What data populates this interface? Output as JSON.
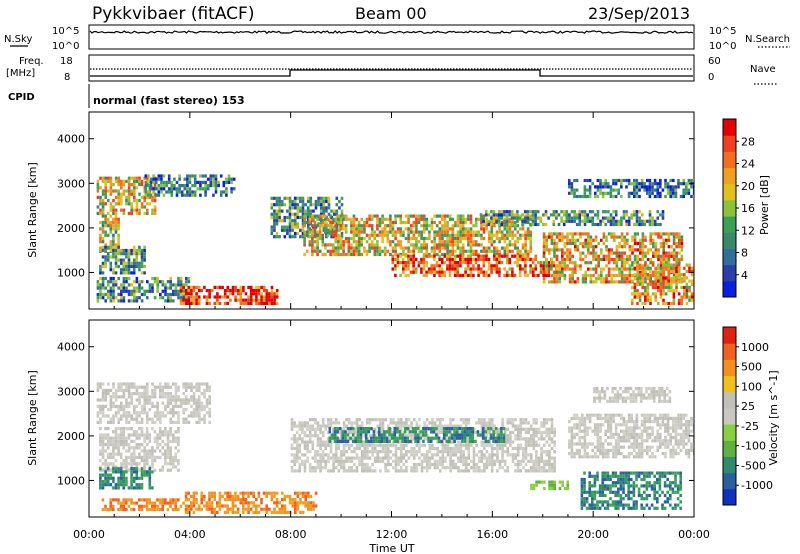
{
  "header": {
    "station": "Pykkvibaer (fitACF)",
    "beam": "Beam 00",
    "date": "23/Sep/2013"
  },
  "noise_panel": {
    "left_label": "N.Sky",
    "right_label": "N.Search",
    "left_ticks": [
      "10^5",
      "10^0"
    ],
    "right_ticks": [
      "10^5",
      "10^0"
    ]
  },
  "freq_panel": {
    "left_label_1": "Freq.",
    "left_label_2": "[MHz]",
    "cpid_label": "CPID",
    "right_label": "Nave",
    "left_ticks": [
      "18",
      "8"
    ],
    "right_ticks": [
      "60",
      "0"
    ],
    "cpid_text": "normal (fast stereo) 153"
  },
  "chart_data": [
    {
      "type": "heatmap",
      "name": "power",
      "ylabel": "Slant Range [km]",
      "xlabel": "Time UT",
      "x_ticks": [
        "00:00",
        "04:00",
        "08:00",
        "12:00",
        "16:00",
        "20:00",
        "00:00"
      ],
      "x_range_hours": [
        0,
        24
      ],
      "y_ticks": [
        1000,
        2000,
        3000,
        4000
      ],
      "ylim": [
        180,
        4600
      ],
      "colorbar": {
        "label": "Power [dB]",
        "ticks": [
          "28",
          "24",
          "20",
          "16",
          "12",
          "8",
          "4"
        ],
        "colors": [
          "#0a1fe0",
          "#2a3fa8",
          "#2f6f9a",
          "#3a8a6a",
          "#3aa055",
          "#8ac23a",
          "#e0c020",
          "#f0a020",
          "#f07020",
          "#f04020",
          "#e00000"
        ]
      },
      "bands": [
        {
          "t": [
            0.3,
            2.6
          ],
          "r": [
            2300,
            3150
          ],
          "level": 0.6
        },
        {
          "t": [
            0.4,
            1.2
          ],
          "r": [
            1500,
            2300
          ],
          "level": 0.55
        },
        {
          "t": [
            0.4,
            2.2
          ],
          "r": [
            1000,
            1600
          ],
          "level": 0.35
        },
        {
          "t": [
            0.3,
            4.0
          ],
          "r": [
            350,
            900
          ],
          "level": 0.3
        },
        {
          "t": [
            2.2,
            5.8
          ],
          "r": [
            2700,
            3200
          ],
          "level": 0.25
        },
        {
          "t": [
            3.6,
            7.5
          ],
          "r": [
            300,
            700
          ],
          "level": 0.9
        },
        {
          "t": [
            7.2,
            10.0
          ],
          "r": [
            1800,
            2700
          ],
          "level": 0.35
        },
        {
          "t": [
            8.5,
            17.5
          ],
          "r": [
            1400,
            2300
          ],
          "level": 0.6
        },
        {
          "t": [
            12.0,
            18.5
          ],
          "r": [
            900,
            1400
          ],
          "level": 0.8
        },
        {
          "t": [
            15.5,
            22.8
          ],
          "r": [
            2100,
            2400
          ],
          "level": 0.35
        },
        {
          "t": [
            18.0,
            23.5
          ],
          "r": [
            800,
            1900
          ],
          "level": 0.65
        },
        {
          "t": [
            19.0,
            24.0
          ],
          "r": [
            2700,
            3100
          ],
          "level": 0.25
        },
        {
          "t": [
            21.5,
            24.0
          ],
          "r": [
            300,
            1200
          ],
          "level": 0.7
        }
      ]
    },
    {
      "type": "heatmap",
      "name": "velocity",
      "ylabel": "Slant Range [km]",
      "xlabel": "Time UT",
      "x_ticks": [
        "00:00",
        "04:00",
        "08:00",
        "12:00",
        "16:00",
        "20:00",
        "00:00"
      ],
      "x_range_hours": [
        0,
        24
      ],
      "y_ticks": [
        1000,
        2000,
        3000,
        4000
      ],
      "ylim": [
        180,
        4600
      ],
      "colorbar": {
        "label": "Velocity [m s^-1]",
        "ticks": [
          "1000",
          "500",
          "100",
          "25",
          "-25",
          "-100",
          "-500",
          "-1000"
        ],
        "colors": [
          "#1030c0",
          "#2a5fa0",
          "#2f8a70",
          "#60b040",
          "#88d040",
          "#c8c8c0",
          "#c0c0b8",
          "#f0c020",
          "#f09020",
          "#f06020",
          "#e02010"
        ]
      },
      "bands": [
        {
          "t": [
            0.3,
            4.8
          ],
          "r": [
            2300,
            3200
          ],
          "code": "grey"
        },
        {
          "t": [
            0.4,
            3.5
          ],
          "r": [
            1200,
            2200
          ],
          "code": "grey"
        },
        {
          "t": [
            0.4,
            2.5
          ],
          "r": [
            800,
            1300
          ],
          "code": "green"
        },
        {
          "t": [
            0.5,
            4.0
          ],
          "r": [
            350,
            600
          ],
          "code": "orange"
        },
        {
          "t": [
            3.8,
            9.0
          ],
          "r": [
            300,
            750
          ],
          "code": "orange"
        },
        {
          "t": [
            8.0,
            18.5
          ],
          "r": [
            1200,
            2400
          ],
          "code": "grey"
        },
        {
          "t": [
            9.5,
            16.5
          ],
          "r": [
            1900,
            2200
          ],
          "code": "green"
        },
        {
          "t": [
            17.5,
            19.0
          ],
          "r": [
            800,
            1000
          ],
          "code": "lightgreen"
        },
        {
          "t": [
            19.0,
            24.0
          ],
          "r": [
            1500,
            2500
          ],
          "code": "grey"
        },
        {
          "t": [
            19.5,
            23.5
          ],
          "r": [
            400,
            1200
          ],
          "code": "green"
        },
        {
          "t": [
            20.0,
            23.0
          ],
          "r": [
            2800,
            3100
          ],
          "code": "grey"
        }
      ]
    }
  ]
}
